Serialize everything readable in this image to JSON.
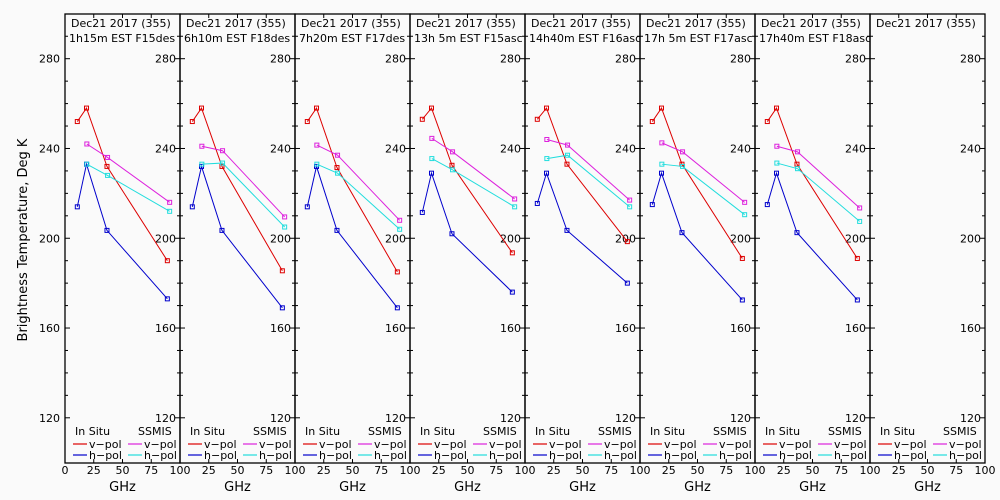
{
  "chart_data": {
    "type": "line",
    "ylabel": "Brightness Temperature, Deg K",
    "xlabel": "GHz",
    "ylim": [
      110,
      295
    ],
    "xlim": [
      0,
      100
    ],
    "yticks_major": [
      120,
      160,
      200,
      240,
      280
    ],
    "yticks_minor_step": 10,
    "xticks": [
      0,
      25,
      50,
      75,
      100
    ],
    "xtick_labels_first": [
      "0",
      "25",
      "50",
      "75",
      "100"
    ],
    "xtick_labels_other": [
      "25",
      "50",
      "75",
      "100"
    ],
    "legend": {
      "placement": "bottom",
      "insitu_header": "In Situ",
      "ssmis_header": "SSMIS",
      "entries": [
        {
          "group": "In Situ",
          "label": "v-pol",
          "color": "#dd0000"
        },
        {
          "group": "In Situ",
          "label": "h-pol",
          "color": "#0000cc"
        },
        {
          "group": "SSMIS",
          "label": "v-pol",
          "color": "#dd22dd"
        },
        {
          "group": "SSMIS",
          "label": "h-pol",
          "color": "#22dddd"
        }
      ]
    },
    "colors": {
      "insitu_v": "#dd0000",
      "insitu_h": "#0000cc",
      "ssmis_v": "#dd22dd",
      "ssmis_h": "#22dddd"
    },
    "insitu_freqs": [
      10.7,
      18.7,
      36.5,
      89
    ],
    "ssmis_freqs": [
      19,
      37,
      91
    ],
    "panels": [
      {
        "title1": "Dec21 2017 (355)",
        "title2": "1h15m EST F15des",
        "insitu_v": [
          252,
          258,
          232,
          190
        ],
        "insitu_h": [
          214,
          233,
          203.5,
          173
        ],
        "ssmis_v": [
          242,
          236,
          216
        ],
        "ssmis_h": [
          233,
          228,
          212
        ]
      },
      {
        "title1": "Dec21 2017 (355)",
        "title2": "6h10m EST F18des",
        "insitu_v": [
          252,
          258,
          232,
          185.5
        ],
        "insitu_h": [
          214,
          232,
          203.5,
          169
        ],
        "ssmis_v": [
          241,
          239,
          209.5
        ],
        "ssmis_h": [
          233,
          233.5,
          205
        ]
      },
      {
        "title1": "Dec21 2017 (355)",
        "title2": "7h20m EST F17des",
        "insitu_v": [
          252,
          258,
          231.5,
          185
        ],
        "insitu_h": [
          214,
          232,
          203.5,
          169
        ],
        "ssmis_v": [
          241.5,
          237,
          208
        ],
        "ssmis_h": [
          233,
          229,
          204
        ]
      },
      {
        "title1": "Dec21 2017 (355)",
        "title2": "13h 5m EST F15asc",
        "insitu_v": [
          253,
          258,
          232.5,
          193.5
        ],
        "insitu_h": [
          211.5,
          229,
          202,
          176
        ],
        "ssmis_v": [
          244.5,
          238.5,
          217.5
        ],
        "ssmis_h": [
          235.5,
          230.5,
          214
        ]
      },
      {
        "title1": "Dec21 2017 (355)",
        "title2": "14h40m EST F16asc",
        "insitu_v": [
          253,
          258,
          233,
          198.5
        ],
        "insitu_h": [
          215.5,
          229,
          203.5,
          180
        ],
        "ssmis_v": [
          244,
          241.5,
          217
        ],
        "ssmis_h": [
          235.5,
          237,
          214
        ]
      },
      {
        "title1": "Dec21 2017 (355)",
        "title2": "17h 5m EST F17asc",
        "insitu_v": [
          252,
          258,
          233,
          191
        ],
        "insitu_h": [
          215,
          229,
          202.5,
          172.5
        ],
        "ssmis_v": [
          242.5,
          238.5,
          216
        ],
        "ssmis_h": [
          233,
          232,
          210.5
        ]
      },
      {
        "title1": "Dec21 2017 (355)",
        "title2": "17h40m EST F18asc",
        "insitu_v": [
          252,
          258,
          233,
          191
        ],
        "insitu_h": [
          215,
          229,
          202.5,
          172.5
        ],
        "ssmis_v": [
          241,
          238.5,
          213.5
        ],
        "ssmis_h": [
          233.5,
          231,
          207.5
        ]
      },
      {
        "title1": "Dec21 2017 (355)",
        "title2": "",
        "insitu_v": [],
        "insitu_h": [],
        "ssmis_v": [],
        "ssmis_h": []
      }
    ]
  }
}
